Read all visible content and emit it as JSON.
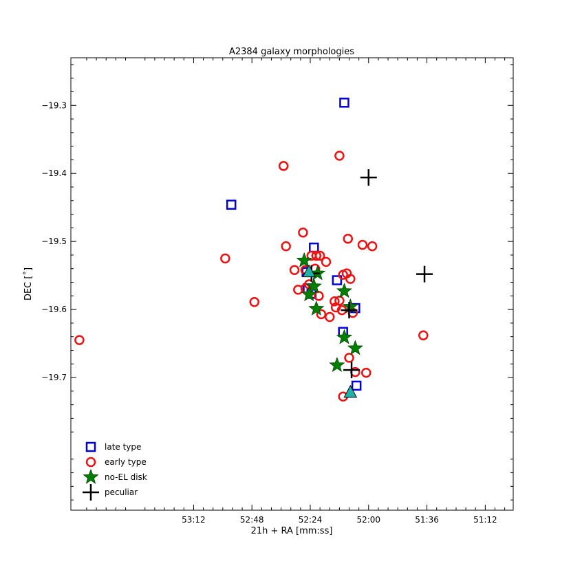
{
  "chart_data": {
    "type": "scatter",
    "title": "A2384 galaxy morphologies",
    "xlabel": "21h + RA [mm:ss]",
    "ylabel": "DEC [˚]",
    "x_units": "seconds past 21h50m",
    "xlim": [
      242.5,
      60.5
    ],
    "ylim": [
      -19.895,
      -19.23
    ],
    "x_ticks": [
      {
        "value": 192,
        "label": "53:12"
      },
      {
        "value": 168,
        "label": "52:48"
      },
      {
        "value": 144,
        "label": "52:24"
      },
      {
        "value": 120,
        "label": "52:00"
      },
      {
        "value": 96,
        "label": "51:36"
      },
      {
        "value": 72,
        "label": "51:12"
      }
    ],
    "y_ticks": [
      {
        "value": -19.3,
        "label": "−19.3"
      },
      {
        "value": -19.4,
        "label": "−19.4"
      },
      {
        "value": -19.5,
        "label": "−19.5"
      },
      {
        "value": -19.6,
        "label": "−19.6"
      },
      {
        "value": -19.7,
        "label": "−19.7"
      }
    ],
    "legend_position": "bottom-left",
    "grid": false,
    "series": [
      {
        "name": "late type",
        "marker": "square",
        "color": "#0000dd",
        "points": [
          {
            "x": 130.0,
            "y": -19.296
          },
          {
            "x": 176.5,
            "y": -19.446
          },
          {
            "x": 142.5,
            "y": -19.509
          },
          {
            "x": 133.0,
            "y": -19.557
          },
          {
            "x": 145.5,
            "y": -19.545
          },
          {
            "x": 145.0,
            "y": -19.569
          },
          {
            "x": 143.5,
            "y": -19.577
          },
          {
            "x": 130.5,
            "y": -19.633
          },
          {
            "x": 125.5,
            "y": -19.598
          },
          {
            "x": 125.0,
            "y": -19.712
          }
        ]
      },
      {
        "name": "early type",
        "marker": "circle",
        "color": "#ee1111",
        "points": [
          {
            "x": 132.0,
            "y": -19.374
          },
          {
            "x": 155.0,
            "y": -19.389
          },
          {
            "x": 179.0,
            "y": -19.525
          },
          {
            "x": 154.0,
            "y": -19.507
          },
          {
            "x": 147.0,
            "y": -19.487
          },
          {
            "x": 128.5,
            "y": -19.496
          },
          {
            "x": 122.5,
            "y": -19.505
          },
          {
            "x": 118.5,
            "y": -19.507
          },
          {
            "x": 150.5,
            "y": -19.542
          },
          {
            "x": 146.0,
            "y": -19.542
          },
          {
            "x": 143.5,
            "y": -19.521
          },
          {
            "x": 141.5,
            "y": -19.521
          },
          {
            "x": 140.0,
            "y": -19.521
          },
          {
            "x": 142.0,
            "y": -19.54
          },
          {
            "x": 137.5,
            "y": -19.53
          },
          {
            "x": 144.5,
            "y": -19.563
          },
          {
            "x": 146.0,
            "y": -19.569
          },
          {
            "x": 149.0,
            "y": -19.571
          },
          {
            "x": 140.5,
            "y": -19.58
          },
          {
            "x": 130.5,
            "y": -19.549
          },
          {
            "x": 129.0,
            "y": -19.547
          },
          {
            "x": 127.5,
            "y": -19.555
          },
          {
            "x": 134.0,
            "y": -19.588
          },
          {
            "x": 132.0,
            "y": -19.587
          },
          {
            "x": 133.5,
            "y": -19.597
          },
          {
            "x": 131.0,
            "y": -19.601
          },
          {
            "x": 139.5,
            "y": -19.607
          },
          {
            "x": 136.0,
            "y": -19.611
          },
          {
            "x": 126.5,
            "y": -19.605
          },
          {
            "x": 167.0,
            "y": -19.589
          },
          {
            "x": 239.0,
            "y": -19.645
          },
          {
            "x": 97.5,
            "y": -19.638
          },
          {
            "x": 128.0,
            "y": -19.671
          },
          {
            "x": 125.5,
            "y": -19.692
          },
          {
            "x": 121.0,
            "y": -19.693
          },
          {
            "x": 130.5,
            "y": -19.728
          }
        ]
      },
      {
        "name": "no-EL disk",
        "marker": "star",
        "color": "#008000",
        "points": [
          {
            "x": 146.5,
            "y": -19.528
          },
          {
            "x": 141.0,
            "y": -19.547
          },
          {
            "x": 142.5,
            "y": -19.566
          },
          {
            "x": 144.5,
            "y": -19.578
          },
          {
            "x": 130.0,
            "y": -19.573
          },
          {
            "x": 141.5,
            "y": -19.599
          },
          {
            "x": 127.5,
            "y": -19.596
          },
          {
            "x": 130.0,
            "y": -19.641
          },
          {
            "x": 125.5,
            "y": -19.657
          },
          {
            "x": 133.0,
            "y": -19.682
          }
        ]
      },
      {
        "name": "peculiar",
        "marker": "plus",
        "color": "#000000",
        "points": [
          {
            "x": 120.0,
            "y": -19.406
          },
          {
            "x": 97.0,
            "y": -19.548
          },
          {
            "x": 143.5,
            "y": -19.547
          },
          {
            "x": 128.0,
            "y": -19.601
          },
          {
            "x": 127.0,
            "y": -19.689
          }
        ]
      },
      {
        "marker": "triangle",
        "color": "#20b2aa",
        "points": [
          {
            "x": 144.5,
            "y": -19.545
          },
          {
            "x": 127.5,
            "y": -19.722
          }
        ]
      }
    ]
  }
}
